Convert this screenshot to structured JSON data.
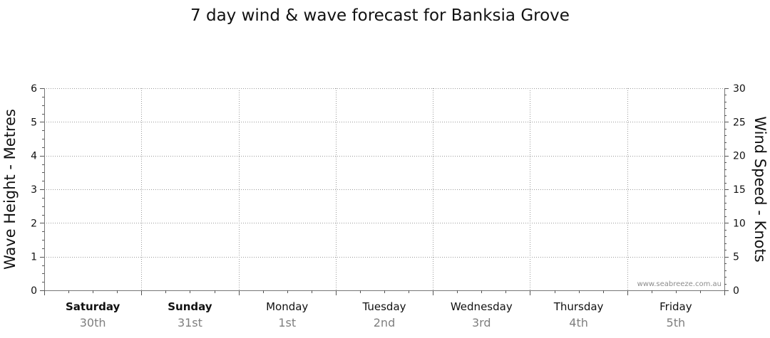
{
  "chart_data": {
    "type": "line",
    "title": "7 day wind & wave forecast for Banksia Grove",
    "ylabel_left": "Wave Height - Metres",
    "ylabel_right": "Wind Speed - Knots",
    "ylim_left": [
      0,
      6
    ],
    "ylim_right": [
      0,
      30
    ],
    "yticks_left": [
      "0",
      "1",
      "2",
      "3",
      "4",
      "5",
      "6"
    ],
    "yticks_right": [
      "0",
      "5",
      "10",
      "15",
      "20",
      "25",
      "30"
    ],
    "days": [
      {
        "name": "Saturday",
        "date": "30th",
        "bold": true
      },
      {
        "name": "Sunday",
        "date": "31st",
        "bold": true
      },
      {
        "name": "Monday",
        "date": "1st",
        "bold": false
      },
      {
        "name": "Tuesday",
        "date": "2nd",
        "bold": false
      },
      {
        "name": "Wednesday",
        "date": "3rd",
        "bold": false
      },
      {
        "name": "Thursday",
        "date": "4th",
        "bold": false
      },
      {
        "name": "Friday",
        "date": "5th",
        "bold": false
      }
    ],
    "series": [],
    "grid": true,
    "watermark": "www.seabreeze.com.au"
  }
}
